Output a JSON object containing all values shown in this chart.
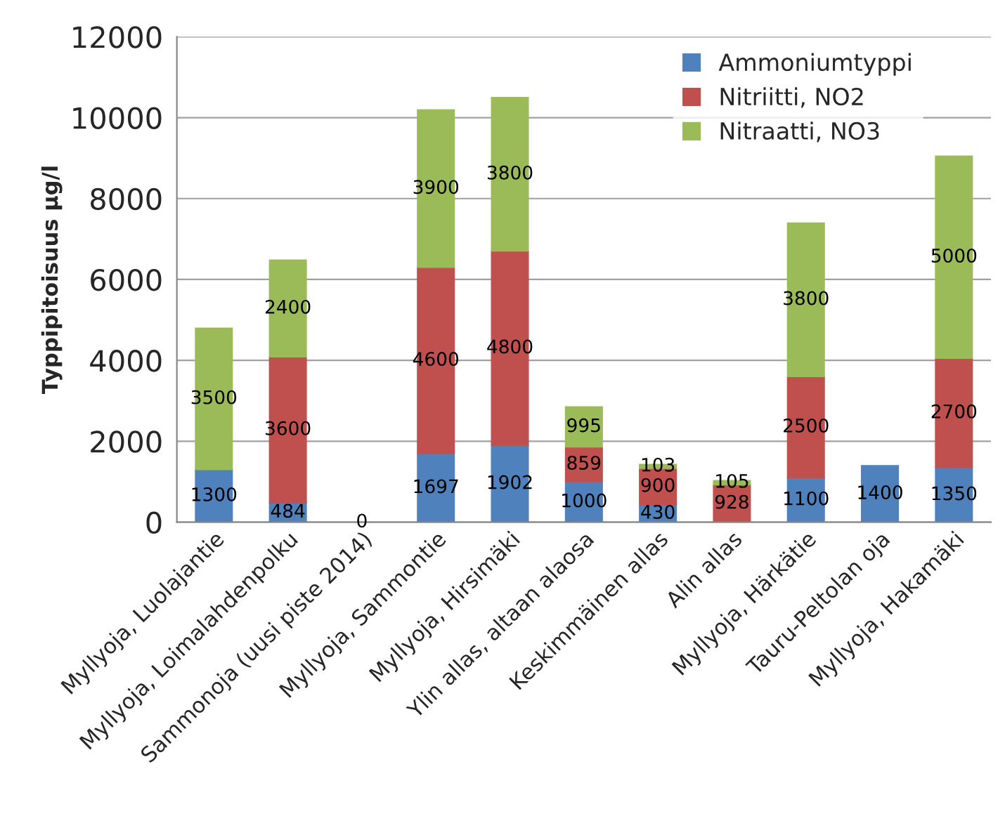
{
  "chart_data": {
    "type": "bar",
    "stacked": true,
    "ylabel": "Typpipitoisuus µg/l",
    "categories": [
      "Myllyoja, Luolajantie",
      "Myllyoja, Loimalahdenpolku",
      "Sammonoja (uusi piste 2014)",
      "Myllyoja, Sammontie",
      "Myllyoja, Hirsimäki",
      "Ylin allas, altaan alaosa",
      "Keskimmäinen allas",
      "Alin allas",
      "Myllyoja, Härkätie",
      "Tauru-Peltolan oja",
      "Myllyoja, Hakamäki"
    ],
    "series": [
      {
        "name": "Ammoniumtyppi",
        "color": "#4f81bd",
        "values": [
          1300,
          484,
          0,
          1697,
          1902,
          1000,
          430,
          null,
          1100,
          1400,
          1350
        ]
      },
      {
        "name": "Nitriitti, NO2",
        "color": "#c0504d",
        "values": [
          null,
          3600,
          null,
          4600,
          4800,
          859,
          900,
          928,
          2500,
          null,
          2700
        ]
      },
      {
        "name": "Nitraatti, NO3",
        "color": "#9bbb59",
        "values": [
          3500,
          2400,
          null,
          3900,
          3800,
          995,
          103,
          105,
          3800,
          null,
          5000
        ]
      }
    ],
    "ylim": [
      0,
      12000
    ],
    "yticks": [
      0,
      2000,
      4000,
      6000,
      8000,
      10000,
      12000
    ],
    "grid": "y",
    "legend": "top right",
    "data_labels": true
  }
}
